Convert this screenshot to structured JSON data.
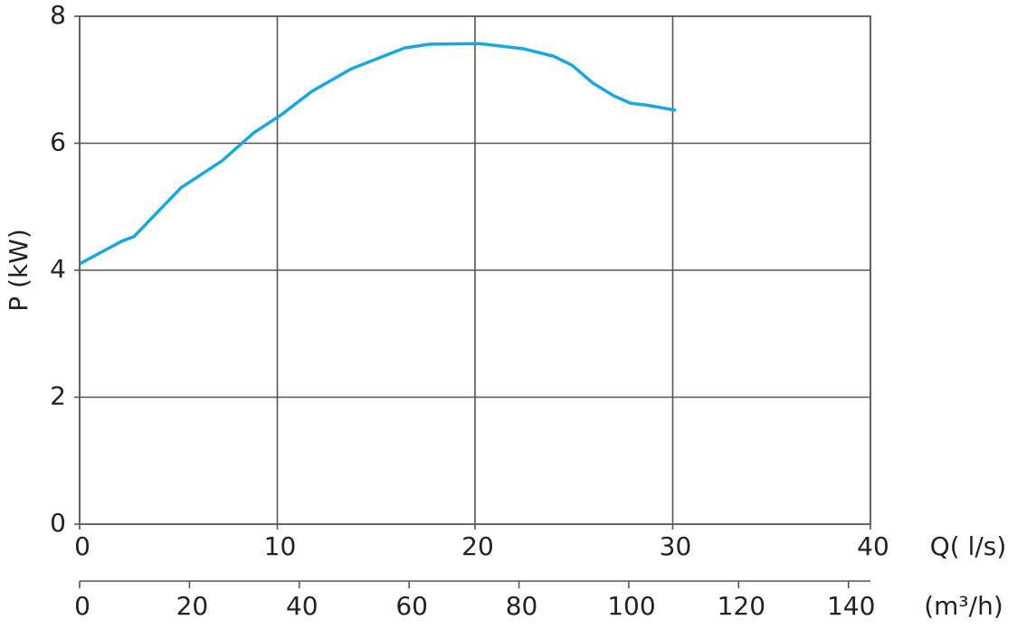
{
  "chart_data": {
    "type": "line",
    "x_label": "Q( l/s)",
    "y_label": "P (kW)",
    "x2_label": "(m³/h)",
    "x": [
      0,
      2.15,
      2.75,
      5.13,
      7.19,
      8.79,
      10.25,
      11.76,
      13.73,
      16.43,
      17.71,
      20.23,
      22.43,
      23.98,
      24.9,
      25.95,
      27.0,
      27.87,
      28.7,
      30.16
    ],
    "series": [
      {
        "color": "#1aa7e0",
        "values": [
          4.1,
          4.46,
          4.53,
          5.3,
          5.72,
          6.16,
          6.46,
          6.82,
          7.17,
          7.5,
          7.56,
          7.57,
          7.49,
          7.37,
          7.23,
          6.95,
          6.75,
          6.63,
          6.6,
          6.52
        ]
      }
    ],
    "xlim": [
      0,
      40
    ],
    "xticks": [
      0,
      10,
      20,
      30,
      40
    ],
    "ylim": [
      0,
      8
    ],
    "yticks": [
      0,
      2,
      4,
      6,
      8
    ],
    "x2lim": [
      0,
      144
    ],
    "x2ticks": [
      0,
      20,
      40,
      60,
      80,
      100,
      120,
      140
    ],
    "grid": true
  }
}
